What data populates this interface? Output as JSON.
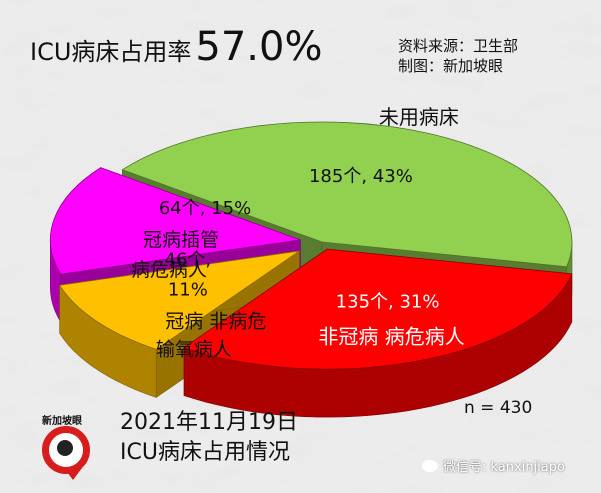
{
  "header": {
    "label": "ICU病床占用率",
    "value": "57.0%"
  },
  "source": {
    "line1": "资料来源：卫生部",
    "line2": "制图：新加坡眼"
  },
  "footer": {
    "date": "2021年11月19日",
    "subtitle": "ICU病床占用情况",
    "n": "n = 430",
    "brand": "新加坡眼",
    "wechat": "微信号: kanxinjiapo"
  },
  "chart_data": {
    "type": "pie",
    "three_d": true,
    "exploded": true,
    "total": 430,
    "slices": [
      {
        "label_lines": [
          "未用病床"
        ],
        "value_label": "185个, 43%",
        "value": 185,
        "percent": 43,
        "color": "#92d050"
      },
      {
        "label_lines": [
          "非冠病 病危病人"
        ],
        "value_label": "135个, 31%",
        "value": 135,
        "percent": 31,
        "color": "#ff0000"
      },
      {
        "label_lines": [
          "冠病 非病危",
          "输氧病人"
        ],
        "value_label_lines": [
          "46个,",
          "11%"
        ],
        "value": 46,
        "percent": 11,
        "color": "#ffc000"
      },
      {
        "label_lines": [
          "冠病插管",
          "病危病人"
        ],
        "value_label": "64个, 15%",
        "value": 64,
        "percent": 15,
        "color": "#ff00ff"
      }
    ]
  }
}
